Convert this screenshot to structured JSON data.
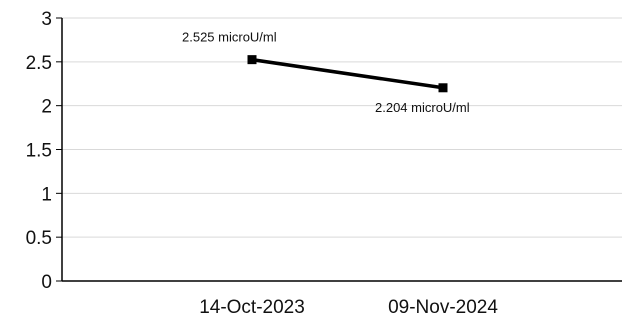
{
  "chart_data": {
    "type": "line",
    "title": "",
    "xlabel": "",
    "ylabel": "",
    "ylim": [
      0,
      3
    ],
    "yticks": [
      "0",
      "0.5",
      "1",
      "1.5",
      "2",
      "2.5",
      "3"
    ],
    "grid": true,
    "categories": [
      "14-Oct-2023",
      "09-Nov-2024"
    ],
    "series": [
      {
        "values": [
          2.525,
          2.204
        ],
        "labels": [
          "2.525 microU/ml",
          "2.204 microU/ml"
        ],
        "color": "#000000"
      }
    ]
  }
}
